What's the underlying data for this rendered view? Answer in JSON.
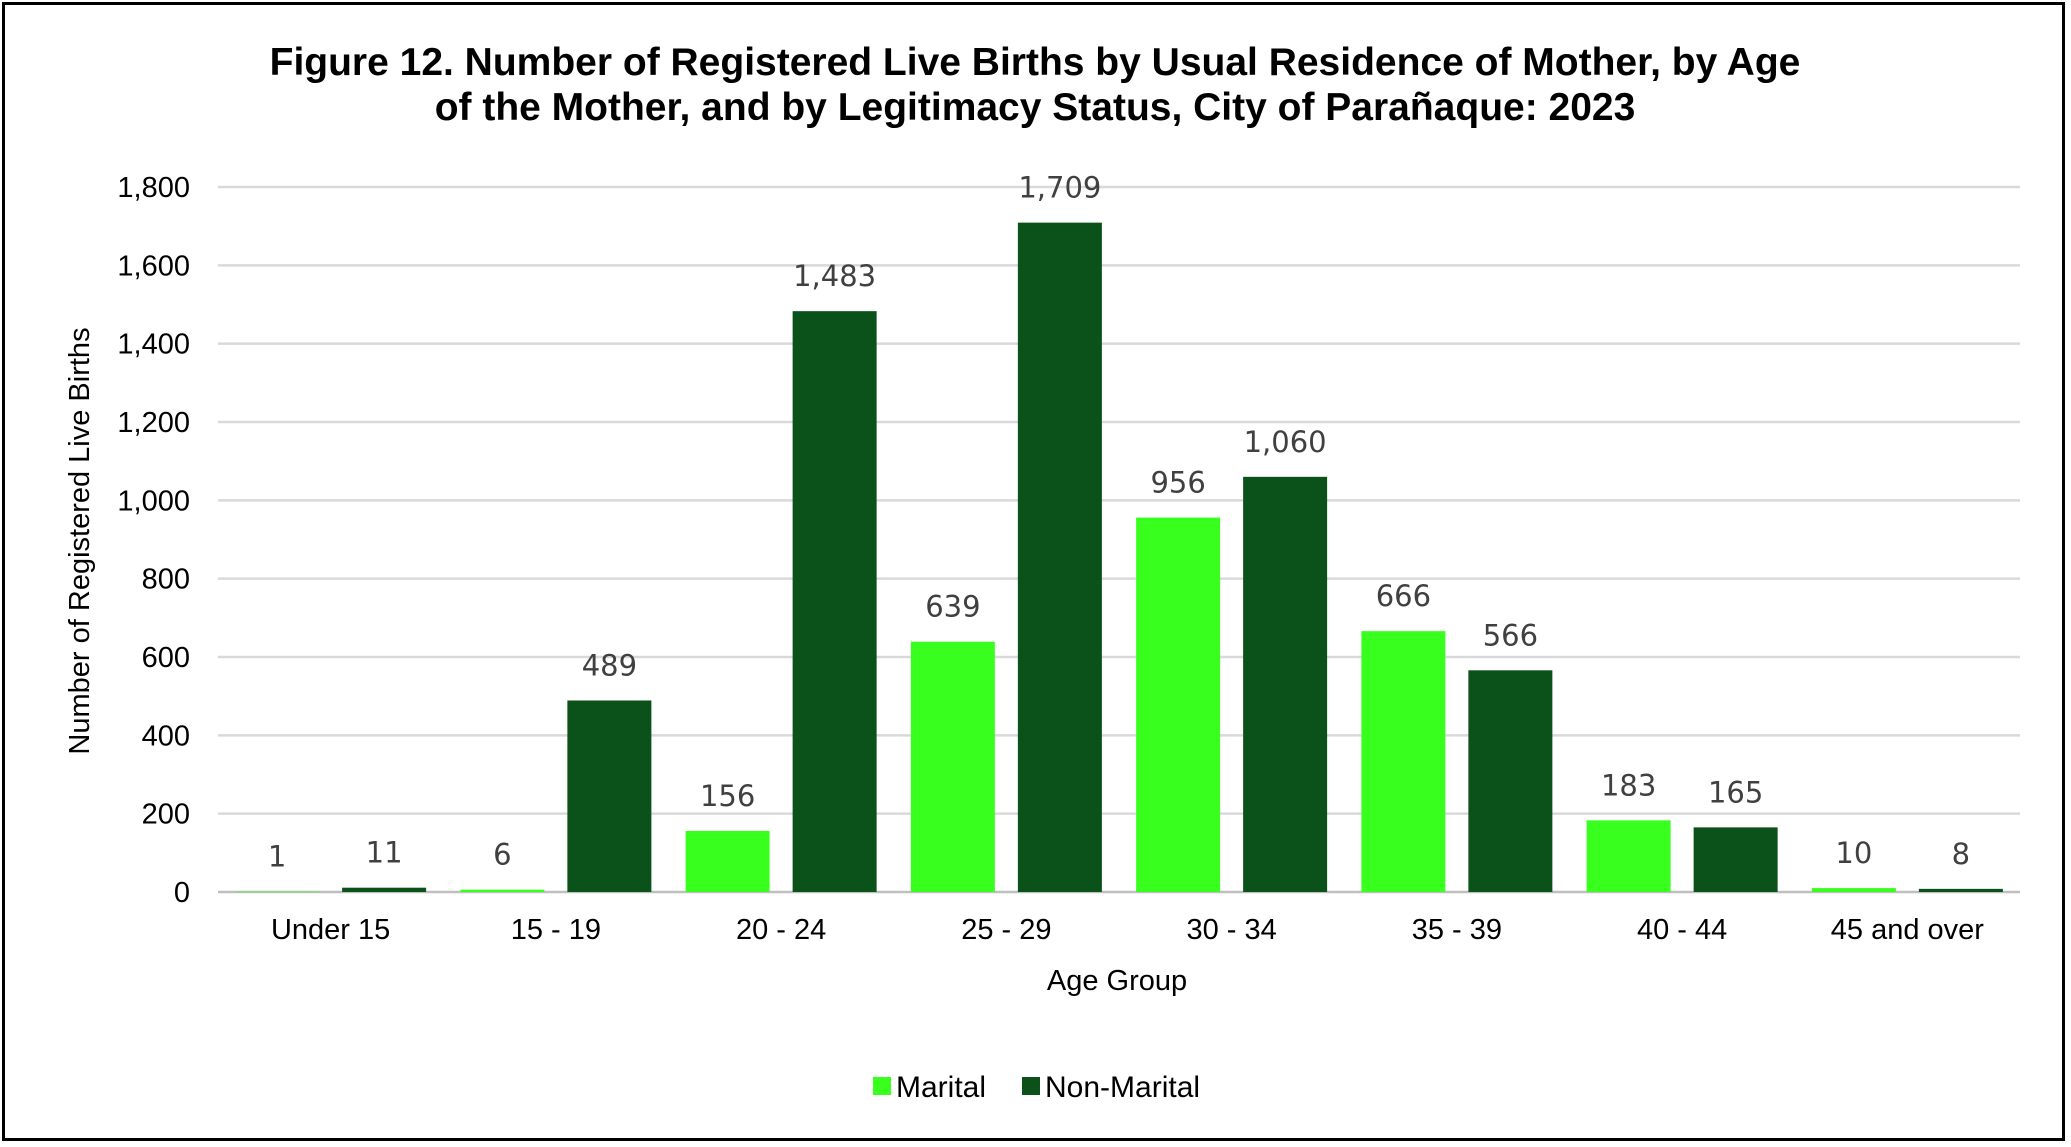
{
  "chart_data": {
    "type": "bar",
    "title_line1": "Figure 12. Number of Registered Live Births by Usual Residence of Mother, by Age",
    "title_line2": "of the Mother, and by Legitimacy Status, City of Parañaque: 2023",
    "xlabel": "Age Group",
    "ylabel": "Number of Registered Live Births",
    "ylim": [
      0,
      1800
    ],
    "yticks": [
      "0",
      "200",
      "400",
      "600",
      "800",
      "1,000",
      "1,200",
      "1,400",
      "1,600",
      "1,800"
    ],
    "grid": true,
    "legend_position": "bottom",
    "categories": [
      "Under 15",
      "15 - 19",
      "20 - 24",
      "25 - 29",
      "30 - 34",
      "35 - 39",
      "40 - 44",
      "45 and over"
    ],
    "series": [
      {
        "name": "Marital",
        "color": "#39ff1f",
        "values": [
          1,
          6,
          156,
          639,
          956,
          666,
          183,
          10
        ],
        "labels": [
          "1",
          "6",
          "156",
          "639",
          "956",
          "666",
          "183",
          "10"
        ]
      },
      {
        "name": "Non-Marital",
        "color": "#0a5219",
        "values": [
          11,
          489,
          1483,
          1709,
          1060,
          566,
          165,
          8
        ],
        "labels": [
          "11",
          "489",
          "1,483",
          "1,709",
          "1,060",
          "566",
          "165",
          "8"
        ]
      }
    ]
  }
}
